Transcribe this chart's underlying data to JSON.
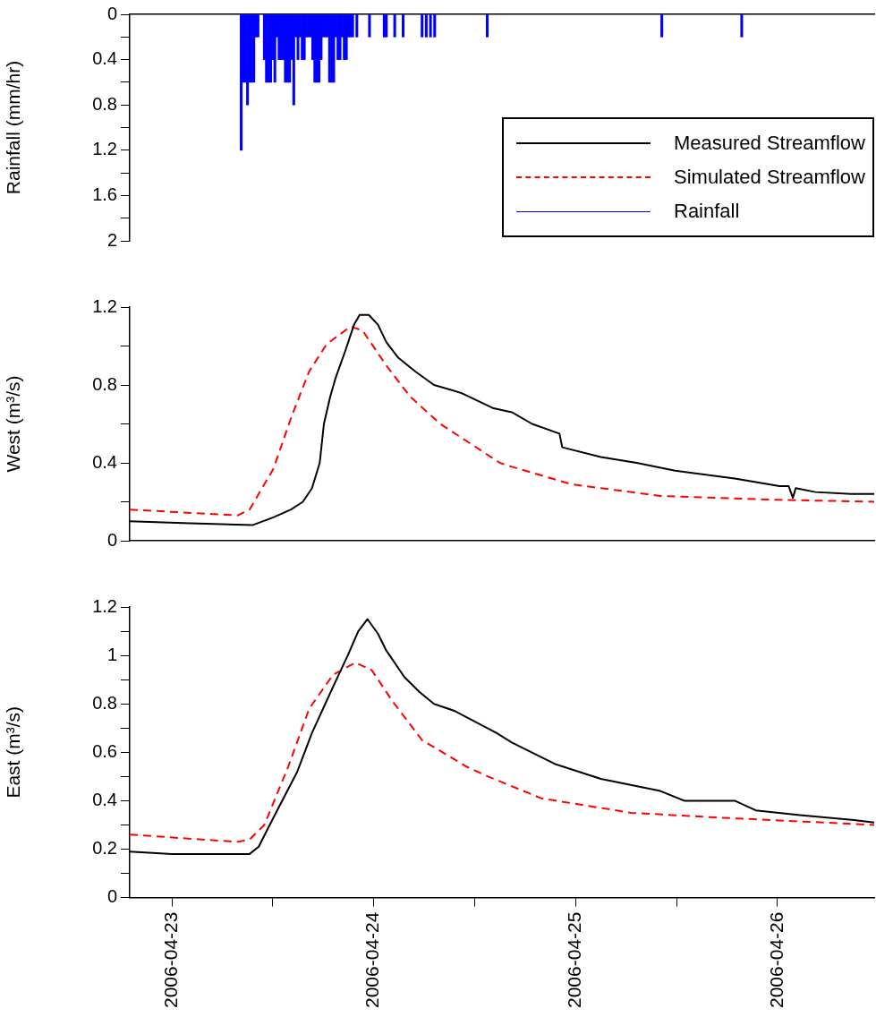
{
  "chart_data": [
    {
      "type": "bar",
      "ylabel": "Rainfall (mm/hr)",
      "xlim": [
        "2006-04-22T19:00",
        "2006-04-26T11:30"
      ],
      "ylim": [
        2,
        0
      ],
      "yticks": [
        0,
        {
          "value": 0.2,
          "label": null
        },
        0.4,
        {
          "value": 0.6,
          "label": null
        },
        0.8,
        {
          "value": 1.0,
          "label": null
        },
        1.2,
        {
          "value": 1.4,
          "label": null
        },
        1.6,
        {
          "value": 1.8,
          "label": null
        },
        2
      ],
      "tick_labels": "y",
      "legend": "bottom right",
      "series": [
        {
          "name": "Rainfall",
          "color": "#0000ff",
          "x": [
            "2006-04-23T08:15",
            "2006-04-23T08:30",
            "2006-04-23T08:45",
            "2006-04-23T09:00",
            "2006-04-23T09:15",
            "2006-04-23T09:30",
            "2006-04-23T09:45",
            "2006-04-23T10:00",
            "2006-04-23T10:15",
            "2006-04-23T11:00",
            "2006-04-23T11:15",
            "2006-04-23T11:30",
            "2006-04-23T11:45",
            "2006-04-23T12:00",
            "2006-04-23T12:15",
            "2006-04-23T12:30",
            "2006-04-23T12:45",
            "2006-04-23T13:00",
            "2006-04-23T13:15",
            "2006-04-23T13:30",
            "2006-04-23T13:45",
            "2006-04-23T14:00",
            "2006-04-23T14:15",
            "2006-04-23T14:30",
            "2006-04-23T14:45",
            "2006-04-23T15:00",
            "2006-04-23T15:15",
            "2006-04-23T15:30",
            "2006-04-23T15:45",
            "2006-04-23T16:00",
            "2006-04-23T16:15",
            "2006-04-23T16:30",
            "2006-04-23T16:45",
            "2006-04-23T17:00",
            "2006-04-23T17:15",
            "2006-04-23T17:30",
            "2006-04-23T17:45",
            "2006-04-23T18:00",
            "2006-04-23T18:15",
            "2006-04-23T18:30",
            "2006-04-23T18:45",
            "2006-04-23T19:00",
            "2006-04-23T19:15",
            "2006-04-23T19:30",
            "2006-04-23T19:45",
            "2006-04-23T20:00",
            "2006-04-23T20:15",
            "2006-04-23T20:30",
            "2006-04-23T20:45",
            "2006-04-23T21:00",
            "2006-04-23T21:15",
            "2006-04-23T21:30",
            "2006-04-23T22:00",
            "2006-04-23T23:30",
            "2006-04-24T01:15",
            "2006-04-24T01:30",
            "2006-04-24T02:30",
            "2006-04-24T03:30",
            "2006-04-24T05:45",
            "2006-04-24T06:15",
            "2006-04-24T06:45",
            "2006-04-24T07:15",
            "2006-04-24T13:30",
            "2006-04-25T10:15",
            "2006-04-25T19:45"
          ],
          "values": [
            1.2,
            0.6,
            0.6,
            0.8,
            0.6,
            0.6,
            0.6,
            0.2,
            0.2,
            0.4,
            0.6,
            0.6,
            0.6,
            0.4,
            0.6,
            0.2,
            0.4,
            0.4,
            0.4,
            0.6,
            0.6,
            0.6,
            0.4,
            0.8,
            0.2,
            0.4,
            0.2,
            0.4,
            0.4,
            0.2,
            0.2,
            0.2,
            0.4,
            0.6,
            0.6,
            0.6,
            0.4,
            0.2,
            0.2,
            0.2,
            0.6,
            0.6,
            0.6,
            0.2,
            0.4,
            0.4,
            0.2,
            0.4,
            0.4,
            0.2,
            0.2,
            0.2,
            0.2,
            0.2,
            0.2,
            0.2,
            0.2,
            0.2,
            0.2,
            0.2,
            0.2,
            0.2,
            0.2,
            0.2,
            0.2
          ]
        }
      ]
    },
    {
      "type": "line",
      "ylabel": "West (m³/s)",
      "xlim": [
        "2006-04-22T19:00",
        "2006-04-26T11:30"
      ],
      "ylim": [
        0,
        1.2
      ],
      "yticks": [
        0,
        {
          "value": 0.2,
          "label": null
        },
        0.4,
        {
          "value": 0.6,
          "label": null
        },
        0.8,
        {
          "value": 1.0,
          "label": null
        },
        1.2
      ],
      "tick_labels": "y",
      "series": [
        {
          "name": "Measured Streamflow",
          "color": "#000000",
          "x": [
            "2006-04-22T19:00",
            "2006-04-23T02:10",
            "2006-04-23T09:35",
            "2006-04-23T12:05",
            "2006-04-23T14:10",
            "2006-04-23T15:35",
            "2006-04-23T16:40",
            "2006-04-23T17:35",
            "2006-04-23T18:05",
            "2006-04-23T18:50",
            "2006-04-23T19:30",
            "2006-04-23T20:35",
            "2006-04-23T21:40",
            "2006-04-23T22:20",
            "2006-04-23T23:25",
            "2006-04-24T00:30",
            "2006-04-24T01:30",
            "2006-04-24T02:55",
            "2006-04-24T04:55",
            "2006-04-24T07:10",
            "2006-04-24T10:20",
            "2006-04-24T14:15",
            "2006-04-24T16:25",
            "2006-04-24T18:50",
            "2006-04-24T22:05",
            "2006-04-24T22:25",
            "2006-04-25T03:00",
            "2006-04-25T07:15",
            "2006-04-25T11:50",
            "2006-04-25T18:55",
            "2006-04-26T00:15",
            "2006-04-26T01:20",
            "2006-04-26T01:50",
            "2006-04-26T02:10",
            "2006-04-26T04:30",
            "2006-04-26T08:45",
            "2006-04-26T11:30"
          ],
          "values": [
            0.1,
            0.09,
            0.08,
            0.12,
            0.16,
            0.2,
            0.27,
            0.4,
            0.6,
            0.74,
            0.84,
            0.97,
            1.11,
            1.16,
            1.16,
            1.11,
            1.02,
            0.94,
            0.87,
            0.8,
            0.76,
            0.68,
            0.66,
            0.6,
            0.55,
            0.48,
            0.43,
            0.4,
            0.36,
            0.32,
            0.28,
            0.28,
            0.22,
            0.27,
            0.25,
            0.24,
            0.24
          ]
        },
        {
          "name": "Simulated Streamflow",
          "color": "#ff0000",
          "line_style": "dashed",
          "x": [
            "2006-04-22T19:00",
            "2006-04-23T07:50",
            "2006-04-23T09:15",
            "2006-04-23T12:05",
            "2006-04-23T14:10",
            "2006-04-23T16:20",
            "2006-04-23T18:25",
            "2006-04-23T21:15",
            "2006-04-23T22:40",
            "2006-04-24T01:30",
            "2006-04-24T04:20",
            "2006-04-24T07:55",
            "2006-04-24T15:00",
            "2006-04-24T16:25",
            "2006-04-24T23:30",
            "2006-04-25T10:05",
            "2006-04-26T00:15",
            "2006-04-26T11:30"
          ],
          "values": [
            0.16,
            0.13,
            0.16,
            0.37,
            0.63,
            0.87,
            1.01,
            1.1,
            1.08,
            0.9,
            0.74,
            0.6,
            0.4,
            0.38,
            0.29,
            0.23,
            0.21,
            0.2
          ]
        }
      ]
    },
    {
      "type": "line",
      "ylabel": "East (m³/s)",
      "xlim": [
        "2006-04-22T19:00",
        "2006-04-26T11:30"
      ],
      "ylim": [
        0,
        1.2
      ],
      "yticks": [
        0,
        {
          "value": 0.1,
          "label": null
        },
        0.2,
        {
          "value": 0.3,
          "label": null
        },
        0.4,
        {
          "value": 0.5,
          "label": null
        },
        0.6,
        {
          "value": 0.7,
          "label": null
        },
        0.8,
        {
          "value": 0.9,
          "label": null
        },
        1,
        {
          "value": 1.1,
          "label": null
        },
        1.2
      ],
      "xticks": [
        "2006-04-23",
        {
          "value": "2006-04-23T12:00",
          "label": null
        },
        "2006-04-24",
        {
          "value": "2006-04-24T12:00",
          "label": null
        },
        "2006-04-25",
        {
          "value": "2006-04-25T12:00",
          "label": null
        },
        "2006-04-26"
      ],
      "series": [
        {
          "color": "#000000",
          "x": [
            "2006-04-22T19:00",
            "2006-04-23T00:00",
            "2006-04-23T09:15",
            "2006-04-23T10:20",
            "2006-04-23T12:05",
            "2006-04-23T14:55",
            "2006-04-23T16:40",
            "2006-04-23T19:10",
            "2006-04-23T20:55",
            "2006-04-23T22:10",
            "2006-04-23T23:15",
            "2006-04-24T00:30",
            "2006-04-24T01:30",
            "2006-04-24T03:40",
            "2006-04-24T05:25",
            "2006-04-24T07:10",
            "2006-04-24T09:40",
            "2006-04-24T14:35",
            "2006-04-24T16:25",
            "2006-04-24T21:40",
            "2006-04-25T03:00",
            "2006-04-25T10:05",
            "2006-04-25T12:55",
            "2006-04-25T18:55",
            "2006-04-25T21:25",
            "2006-04-26T02:40",
            "2006-04-26T09:05",
            "2006-04-26T11:30"
          ],
          "values": [
            0.19,
            0.18,
            0.18,
            0.21,
            0.33,
            0.52,
            0.68,
            0.87,
            1.0,
            1.1,
            1.15,
            1.09,
            1.02,
            0.91,
            0.85,
            0.8,
            0.77,
            0.68,
            0.64,
            0.55,
            0.49,
            0.44,
            0.4,
            0.4,
            0.36,
            0.34,
            0.32,
            0.31
          ]
        },
        {
          "color": "#ff0000",
          "line_style": "dashed",
          "x": [
            "2006-04-22T19:00",
            "2006-04-23T07:50",
            "2006-04-23T09:15",
            "2006-04-23T11:00",
            "2006-04-23T13:50",
            "2006-04-23T16:20",
            "2006-04-23T19:10",
            "2006-04-23T21:50",
            "2006-04-23T23:45",
            "2006-04-24T02:15",
            "2006-04-24T05:45",
            "2006-04-24T11:05",
            "2006-04-24T13:35",
            "2006-04-24T19:55",
            "2006-04-25T06:35",
            "2006-04-25T17:10",
            "2006-04-26T11:30"
          ],
          "values": [
            0.26,
            0.23,
            0.24,
            0.3,
            0.54,
            0.78,
            0.92,
            0.97,
            0.94,
            0.81,
            0.65,
            0.54,
            0.5,
            0.41,
            0.35,
            0.33,
            0.3
          ]
        }
      ]
    }
  ]
}
